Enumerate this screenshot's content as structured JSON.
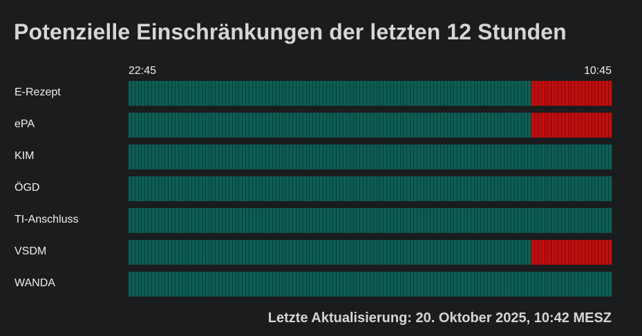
{
  "title": "Potenzielle Einschränkungen der letzten 12 Stunden",
  "timeline": {
    "start_label": "22:45",
    "end_label": "10:45",
    "segments_per_row": 144
  },
  "colors": {
    "ok": "#0d5e55",
    "degraded": "#c10e0e",
    "background": "#1b1c1e"
  },
  "services": [
    {
      "label": "E-Rezept",
      "degraded_fraction_end": 0.17
    },
    {
      "label": "ePA",
      "degraded_fraction_end": 0.17
    },
    {
      "label": "KIM",
      "degraded_fraction_end": 0
    },
    {
      "label": "ÖGD",
      "degraded_fraction_end": 0
    },
    {
      "label": "TI-Anschluss",
      "degraded_fraction_end": 0
    },
    {
      "label": "VSDM",
      "degraded_fraction_end": 0.17
    },
    {
      "label": "WANDA",
      "degraded_fraction_end": 0
    }
  ],
  "footer": {
    "last_update": "Letzte Aktualisierung: 20. Oktober 2025, 10:42 MESZ"
  }
}
